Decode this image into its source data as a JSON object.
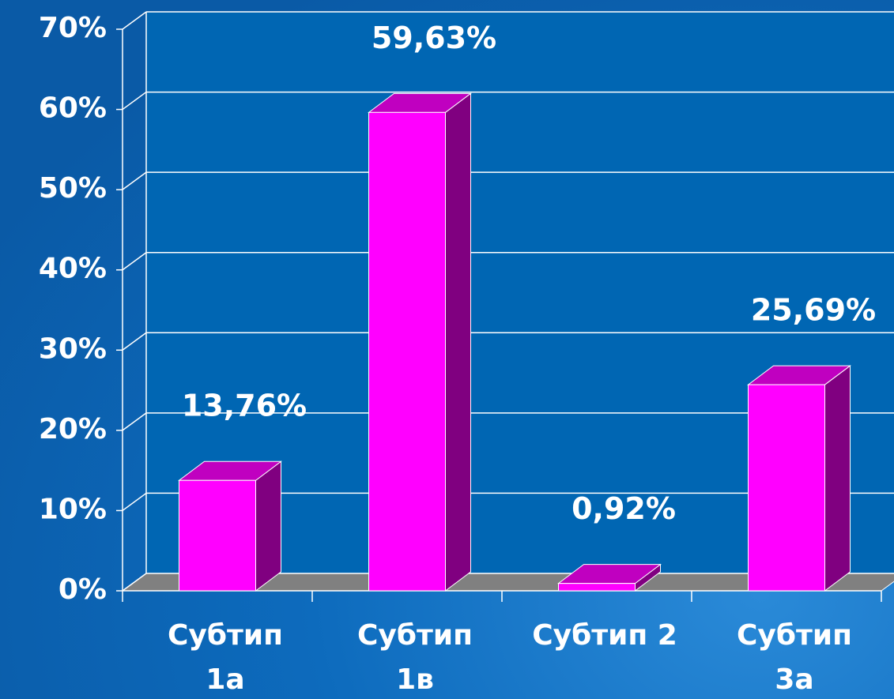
{
  "chart_data": {
    "type": "bar3d",
    "categories": [
      [
        "Субтип",
        "1а"
      ],
      [
        "Субтип",
        "1в"
      ],
      [
        "Субтип 2"
      ],
      [
        "Субтип",
        "3а"
      ]
    ],
    "values": [
      13.76,
      59.63,
      0.92,
      25.69
    ],
    "value_labels": [
      "13,76%",
      "59,63%",
      "0,92%",
      "25,69%"
    ],
    "color": "#ff00ff",
    "ylim": [
      0,
      70
    ],
    "yticks": [
      {
        "value": 0,
        "label": "0%"
      },
      {
        "value": 10,
        "label": "10%"
      },
      {
        "value": 20,
        "label": "20%"
      },
      {
        "value": 30,
        "label": "30%"
      },
      {
        "value": 40,
        "label": "40%"
      },
      {
        "value": 50,
        "label": "50%"
      },
      {
        "value": 60,
        "label": "60%"
      },
      {
        "value": 70,
        "label": "70%"
      }
    ],
    "grid": true
  }
}
